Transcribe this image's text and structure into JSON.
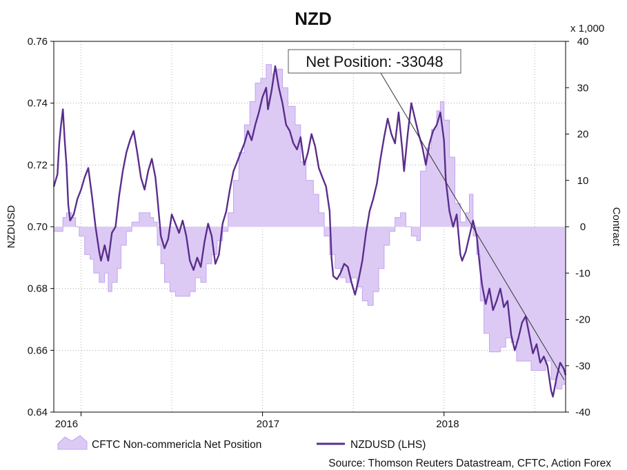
{
  "chart_data": {
    "type": "area+line",
    "title": "NZD",
    "left_axis": {
      "label": "NZDUSD",
      "ylim": [
        0.64,
        0.76
      ],
      "ticks": [
        "0.76",
        "0.74",
        "0.72",
        "0.70",
        "0.68",
        "0.66",
        "0.64"
      ]
    },
    "right_axis": {
      "label": "Contract",
      "multiplier_label": "x 1,000",
      "ylim": [
        -40,
        40
      ],
      "ticks": [
        "40",
        "30",
        "20",
        "10",
        "0",
        "-10",
        "-20",
        "-30",
        "-40"
      ]
    },
    "x_axis": {
      "range": [
        2015.85,
        2018.67
      ],
      "year_labels": [
        "2016",
        "2017",
        "2018"
      ]
    },
    "callout": {
      "text": "Net Position: -33048",
      "value_k": -33.048
    },
    "legend": {
      "area_label": "CFTC Non-commericla Net Position",
      "line_label": "NZDUSD (LHS)"
    },
    "source": "Source: Thomson Reuters Datastream, CFTC, Action Forex",
    "colors": {
      "area_fill": "#dccaf5",
      "area_edge": "#c2a4ee",
      "line": "#5a2d8c",
      "grid": "#9a9a9a"
    },
    "series": [
      {
        "name": "CFTC Non-commericla Net Position",
        "axis": "right",
        "units": "contracts (thousands)",
        "points": [
          [
            2015.85,
            -1
          ],
          [
            2015.88,
            -1
          ],
          [
            2015.9,
            2
          ],
          [
            2015.92,
            3
          ],
          [
            2015.95,
            2
          ],
          [
            2015.97,
            0
          ],
          [
            2015.99,
            -2
          ],
          [
            2016.02,
            -6
          ],
          [
            2016.05,
            -7
          ],
          [
            2016.07,
            -10
          ],
          [
            2016.1,
            -12
          ],
          [
            2016.13,
            -10
          ],
          [
            2016.15,
            -14
          ],
          [
            2016.17,
            -12
          ],
          [
            2016.2,
            -9
          ],
          [
            2016.22,
            -4
          ],
          [
            2016.25,
            -1
          ],
          [
            2016.28,
            1
          ],
          [
            2016.32,
            3
          ],
          [
            2016.35,
            3
          ],
          [
            2016.38,
            2
          ],
          [
            2016.4,
            1
          ],
          [
            2016.42,
            -4
          ],
          [
            2016.44,
            -8
          ],
          [
            2016.46,
            -12
          ],
          [
            2016.49,
            -14
          ],
          [
            2016.52,
            -15
          ],
          [
            2016.56,
            -15
          ],
          [
            2016.6,
            -14
          ],
          [
            2016.63,
            -11
          ],
          [
            2016.66,
            -12
          ],
          [
            2016.69,
            -8
          ],
          [
            2016.72,
            -6
          ],
          [
            2016.75,
            -3
          ],
          [
            2016.78,
            -1
          ],
          [
            2016.81,
            3
          ],
          [
            2016.84,
            10
          ],
          [
            2016.87,
            16
          ],
          [
            2016.9,
            22
          ],
          [
            2016.93,
            27
          ],
          [
            2016.96,
            31
          ],
          [
            2016.99,
            32
          ],
          [
            2017.02,
            35
          ],
          [
            2017.05,
            33
          ],
          [
            2017.08,
            34
          ],
          [
            2017.11,
            30
          ],
          [
            2017.14,
            26
          ],
          [
            2017.18,
            22
          ],
          [
            2017.21,
            14
          ],
          [
            2017.24,
            10
          ],
          [
            2017.28,
            7
          ],
          [
            2017.31,
            3
          ],
          [
            2017.34,
            -2
          ],
          [
            2017.37,
            -6
          ],
          [
            2017.4,
            -9
          ],
          [
            2017.43,
            -11
          ],
          [
            2017.46,
            -12
          ],
          [
            2017.49,
            -11
          ],
          [
            2017.52,
            -13
          ],
          [
            2017.55,
            -16
          ],
          [
            2017.58,
            -17
          ],
          [
            2017.61,
            -14
          ],
          [
            2017.64,
            -9
          ],
          [
            2017.67,
            -4
          ],
          [
            2017.7,
            -1
          ],
          [
            2017.73,
            2
          ],
          [
            2017.76,
            3
          ],
          [
            2017.79,
            0
          ],
          [
            2017.82,
            -2
          ],
          [
            2017.85,
            -3
          ],
          [
            2017.87,
            12
          ],
          [
            2017.9,
            17
          ],
          [
            2017.93,
            21
          ],
          [
            2017.96,
            25
          ],
          [
            2017.98,
            27
          ],
          [
            2018.0,
            23
          ],
          [
            2018.03,
            15
          ],
          [
            2018.06,
            5
          ],
          [
            2018.09,
            1
          ],
          [
            2018.12,
            3
          ],
          [
            2018.14,
            7
          ],
          [
            2018.16,
            -2
          ],
          [
            2018.18,
            -6
          ],
          [
            2018.2,
            -16
          ],
          [
            2018.22,
            -23
          ],
          [
            2018.25,
            -27
          ],
          [
            2018.28,
            -27
          ],
          [
            2018.31,
            -26
          ],
          [
            2018.34,
            -24
          ],
          [
            2018.37,
            -25
          ],
          [
            2018.4,
            -29
          ],
          [
            2018.44,
            -29
          ],
          [
            2018.48,
            -31
          ],
          [
            2018.52,
            -31
          ],
          [
            2018.56,
            -29
          ],
          [
            2018.59,
            -33
          ],
          [
            2018.62,
            -35
          ],
          [
            2018.65,
            -34
          ],
          [
            2018.67,
            -33
          ]
        ]
      },
      {
        "name": "NZDUSD (LHS)",
        "axis": "left",
        "units": "USD per NZD",
        "points": [
          [
            2015.85,
            0.713
          ],
          [
            2015.87,
            0.717
          ],
          [
            2015.88,
            0.727
          ],
          [
            2015.89,
            0.733
          ],
          [
            2015.9,
            0.738
          ],
          [
            2015.91,
            0.728
          ],
          [
            2015.92,
            0.72
          ],
          [
            2015.93,
            0.707
          ],
          [
            2015.94,
            0.702
          ],
          [
            2015.96,
            0.704
          ],
          [
            2015.98,
            0.709
          ],
          [
            2016.0,
            0.712
          ],
          [
            2016.02,
            0.716
          ],
          [
            2016.04,
            0.719
          ],
          [
            2016.06,
            0.71
          ],
          [
            2016.08,
            0.7
          ],
          [
            2016.1,
            0.692
          ],
          [
            2016.11,
            0.689
          ],
          [
            2016.13,
            0.694
          ],
          [
            2016.15,
            0.689
          ],
          [
            2016.17,
            0.698
          ],
          [
            2016.19,
            0.7
          ],
          [
            2016.21,
            0.71
          ],
          [
            2016.23,
            0.718
          ],
          [
            2016.25,
            0.724
          ],
          [
            2016.27,
            0.728
          ],
          [
            2016.29,
            0.731
          ],
          [
            2016.31,
            0.724
          ],
          [
            2016.33,
            0.716
          ],
          [
            2016.35,
            0.712
          ],
          [
            2016.37,
            0.718
          ],
          [
            2016.39,
            0.722
          ],
          [
            2016.41,
            0.716
          ],
          [
            2016.42,
            0.71
          ],
          [
            2016.44,
            0.697
          ],
          [
            2016.46,
            0.693
          ],
          [
            2016.48,
            0.696
          ],
          [
            2016.5,
            0.704
          ],
          [
            2016.52,
            0.701
          ],
          [
            2016.54,
            0.698
          ],
          [
            2016.56,
            0.702
          ],
          [
            2016.58,
            0.697
          ],
          [
            2016.6,
            0.689
          ],
          [
            2016.62,
            0.686
          ],
          [
            2016.64,
            0.69
          ],
          [
            2016.66,
            0.687
          ],
          [
            2016.68,
            0.695
          ],
          [
            2016.7,
            0.701
          ],
          [
            2016.72,
            0.697
          ],
          [
            2016.74,
            0.688
          ],
          [
            2016.76,
            0.691
          ],
          [
            2016.78,
            0.701
          ],
          [
            2016.8,
            0.705
          ],
          [
            2016.82,
            0.712
          ],
          [
            2016.84,
            0.718
          ],
          [
            2016.86,
            0.721
          ],
          [
            2016.88,
            0.724
          ],
          [
            2016.9,
            0.727
          ],
          [
            2016.92,
            0.731
          ],
          [
            2016.94,
            0.728
          ],
          [
            2016.96,
            0.733
          ],
          [
            2016.98,
            0.737
          ],
          [
            2017.0,
            0.742
          ],
          [
            2017.02,
            0.745
          ],
          [
            2017.03,
            0.738
          ],
          [
            2017.05,
            0.744
          ],
          [
            2017.07,
            0.752
          ],
          [
            2017.09,
            0.745
          ],
          [
            2017.11,
            0.74
          ],
          [
            2017.13,
            0.733
          ],
          [
            2017.15,
            0.731
          ],
          [
            2017.17,
            0.727
          ],
          [
            2017.19,
            0.725
          ],
          [
            2017.21,
            0.729
          ],
          [
            2017.23,
            0.72
          ],
          [
            2017.25,
            0.724
          ],
          [
            2017.27,
            0.73
          ],
          [
            2017.29,
            0.726
          ],
          [
            2017.31,
            0.719
          ],
          [
            2017.33,
            0.716
          ],
          [
            2017.35,
            0.713
          ],
          [
            2017.37,
            0.705
          ],
          [
            2017.38,
            0.69
          ],
          [
            2017.39,
            0.684
          ],
          [
            2017.41,
            0.683
          ],
          [
            2017.43,
            0.685
          ],
          [
            2017.45,
            0.688
          ],
          [
            2017.47,
            0.687
          ],
          [
            2017.49,
            0.682
          ],
          [
            2017.51,
            0.678
          ],
          [
            2017.53,
            0.683
          ],
          [
            2017.55,
            0.689
          ],
          [
            2017.57,
            0.698
          ],
          [
            2017.59,
            0.705
          ],
          [
            2017.61,
            0.709
          ],
          [
            2017.63,
            0.714
          ],
          [
            2017.65,
            0.722
          ],
          [
            2017.67,
            0.729
          ],
          [
            2017.69,
            0.735
          ],
          [
            2017.71,
            0.73
          ],
          [
            2017.73,
            0.727
          ],
          [
            2017.75,
            0.737
          ],
          [
            2017.77,
            0.725
          ],
          [
            2017.78,
            0.718
          ],
          [
            2017.8,
            0.73
          ],
          [
            2017.82,
            0.74
          ],
          [
            2017.84,
            0.735
          ],
          [
            2017.86,
            0.73
          ],
          [
            2017.88,
            0.726
          ],
          [
            2017.9,
            0.72
          ],
          [
            2017.92,
            0.727
          ],
          [
            2017.94,
            0.731
          ],
          [
            2017.96,
            0.733
          ],
          [
            2017.98,
            0.737
          ],
          [
            2018.0,
            0.728
          ],
          [
            2018.01,
            0.715
          ],
          [
            2018.03,
            0.705
          ],
          [
            2018.05,
            0.7
          ],
          [
            2018.07,
            0.704
          ],
          [
            2018.09,
            0.691
          ],
          [
            2018.1,
            0.689
          ],
          [
            2018.12,
            0.692
          ],
          [
            2018.14,
            0.697
          ],
          [
            2018.16,
            0.702
          ],
          [
            2018.18,
            0.697
          ],
          [
            2018.2,
            0.686
          ],
          [
            2018.21,
            0.681
          ],
          [
            2018.23,
            0.675
          ],
          [
            2018.25,
            0.68
          ],
          [
            2018.27,
            0.673
          ],
          [
            2018.29,
            0.676
          ],
          [
            2018.31,
            0.68
          ],
          [
            2018.33,
            0.674
          ],
          [
            2018.35,
            0.676
          ],
          [
            2018.37,
            0.665
          ],
          [
            2018.39,
            0.66
          ],
          [
            2018.41,
            0.664
          ],
          [
            2018.43,
            0.669
          ],
          [
            2018.45,
            0.671
          ],
          [
            2018.47,
            0.665
          ],
          [
            2018.49,
            0.659
          ],
          [
            2018.51,
            0.662
          ],
          [
            2018.53,
            0.656
          ],
          [
            2018.55,
            0.658
          ],
          [
            2018.57,
            0.655
          ],
          [
            2018.59,
            0.647
          ],
          [
            2018.6,
            0.645
          ],
          [
            2018.62,
            0.651
          ],
          [
            2018.64,
            0.656
          ],
          [
            2018.66,
            0.654
          ],
          [
            2018.67,
            0.652
          ]
        ]
      }
    ]
  }
}
